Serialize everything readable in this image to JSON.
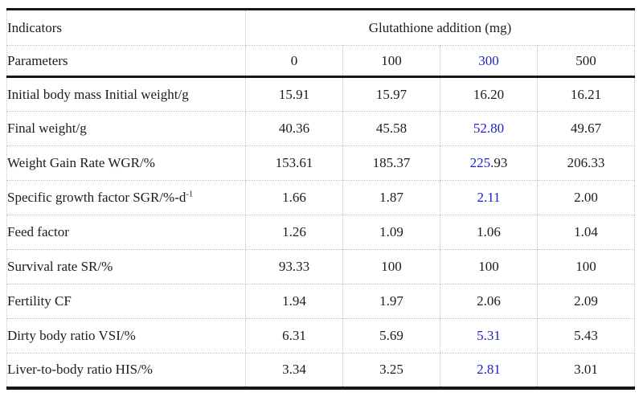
{
  "colors": {
    "accent_blue": "#2020cc",
    "rule_black": "#161616",
    "divider_gray": "#bfbfbf",
    "text_black": "#1c1c1c"
  },
  "table": {
    "header": {
      "indicators_label": "Indicators",
      "parameters_label": "Parameters",
      "span_label": "Glutathione addition (mg)",
      "doses": [
        {
          "text": "0"
        },
        {
          "text": "100"
        },
        {
          "text": "300",
          "style": "color:#2020cc"
        },
        {
          "text": "500"
        }
      ]
    },
    "rows": [
      {
        "label": "Initial body mass Initial weight/g",
        "cells": [
          {
            "text": "15.91"
          },
          {
            "text": "15.97"
          },
          {
            "text": "16.20"
          },
          {
            "text": "16.21"
          }
        ]
      },
      {
        "label": "Final weight/g",
        "cells": [
          {
            "text": "40.36"
          },
          {
            "text": "45.58"
          },
          {
            "text": "52.80",
            "style": "color:#2020cc"
          },
          {
            "text": "49.67"
          }
        ]
      },
      {
        "label": "Weight Gain Rate WGR/%",
        "cells": [
          {
            "text": "153.61"
          },
          {
            "text": "185.37"
          },
          {
            "part1": "225",
            "part1_style": "color:#2020cc",
            "part2": ".93"
          },
          {
            "text": "206.33"
          }
        ]
      },
      {
        "label": "Specific growth factor SGR/%-d",
        "label_sup": "-1",
        "cells": [
          {
            "text": "1.66"
          },
          {
            "text": "1.87"
          },
          {
            "text": "2.11",
            "style": "color:#2020cc"
          },
          {
            "text": "2.00"
          }
        ]
      },
      {
        "label": "Feed factor",
        "cells": [
          {
            "text": "1.26"
          },
          {
            "text": "1.09"
          },
          {
            "text": "1.06"
          },
          {
            "text": "1.04"
          }
        ]
      },
      {
        "label": "Survival rate SR/%",
        "cells": [
          {
            "text": "93.33"
          },
          {
            "text": "100"
          },
          {
            "text": "100"
          },
          {
            "text": "100"
          }
        ]
      },
      {
        "label": "Fertility CF",
        "cells": [
          {
            "text": "1.94"
          },
          {
            "text": "1.97"
          },
          {
            "text": "2.06"
          },
          {
            "text": "2.09"
          }
        ]
      },
      {
        "label": "Dirty body ratio VSI/%",
        "cells": [
          {
            "text": "6.31"
          },
          {
            "text": "5.69"
          },
          {
            "text": "5.31",
            "style": "color:#2020cc"
          },
          {
            "text": "5.43"
          }
        ]
      },
      {
        "label": "Liver-to-body ratio HIS/%",
        "cells": [
          {
            "text": "3.34"
          },
          {
            "text": "3.25"
          },
          {
            "text": "2.81",
            "style": "color:#2020cc"
          },
          {
            "text": "3.01"
          }
        ]
      }
    ]
  },
  "chart_data": {
    "type": "table",
    "title": "Glutathione addition (mg)",
    "columns": [
      "Indicators / Parameters",
      "0",
      "100",
      "300",
      "500"
    ],
    "rows": [
      [
        "Initial body mass Initial weight/g",
        "15.91",
        "15.97",
        "16.20",
        "16.21"
      ],
      [
        "Final weight/g",
        "40.36",
        "45.58",
        "52.80",
        "49.67"
      ],
      [
        "Weight Gain Rate WGR/%",
        "153.61",
        "185.37",
        "225.93",
        "206.33"
      ],
      [
        "Specific growth factor SGR/%-d-1",
        "1.66",
        "1.87",
        "2.11",
        "2.00"
      ],
      [
        "Feed factor",
        "1.26",
        "1.09",
        "1.06",
        "1.04"
      ],
      [
        "Survival rate SR/%",
        "93.33",
        "100",
        "100",
        "100"
      ],
      [
        "Fertility CF",
        "1.94",
        "1.97",
        "2.06",
        "2.09"
      ],
      [
        "Dirty body ratio VSI/%",
        "6.31",
        "5.69",
        "5.31",
        "5.43"
      ],
      [
        "Liver-to-body ratio HIS/%",
        "3.34",
        "3.25",
        "2.81",
        "3.01"
      ]
    ],
    "highlighted_column": "300",
    "highlight_color": "#2020cc"
  }
}
